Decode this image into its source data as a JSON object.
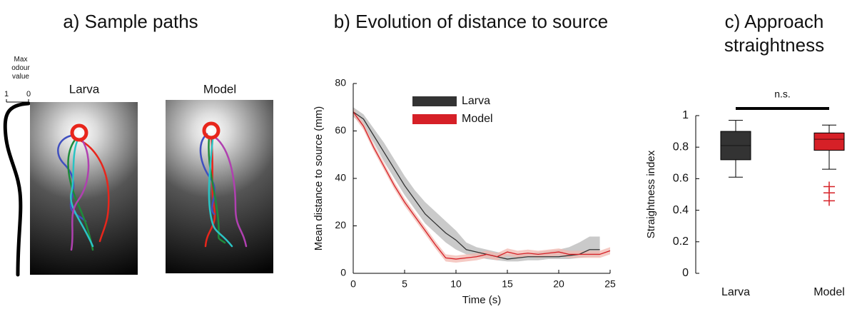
{
  "chart_data": [
    {
      "type": "paths",
      "title": "a) Sample paths",
      "profile_label": "Max odour value",
      "xlim": [
        1,
        0
      ],
      "xticks": [
        1,
        0
      ],
      "panels": [
        "Larva",
        "Model"
      ]
    },
    {
      "type": "line",
      "title": "b) Evolution of distance to source",
      "xlabel": "Time (s)",
      "ylabel": "Mean distance to source (mm)",
      "x": [
        0,
        1,
        2,
        3,
        4,
        5,
        6,
        7,
        8,
        9,
        10,
        11,
        12,
        13,
        14,
        15,
        16,
        17,
        18,
        19,
        20,
        21,
        22,
        23,
        24,
        25
      ],
      "xlim": [
        0,
        25
      ],
      "xticks": [
        0,
        5,
        10,
        15,
        20,
        25
      ],
      "ylim": [
        0,
        80
      ],
      "yticks": [
        0,
        20,
        40,
        60,
        80
      ],
      "series": [
        {
          "name": "Larva",
          "color": "#333333",
          "band_color": "#b8b8b8",
          "values": [
            68,
            65,
            58,
            51,
            44,
            37,
            31,
            25,
            21,
            17,
            14,
            10,
            9,
            8,
            7,
            6,
            6.5,
            7,
            7,
            7,
            7,
            7.5,
            8,
            10,
            10,
            null
          ],
          "upper": [
            70,
            67,
            61,
            55,
            48,
            41,
            35,
            30,
            26,
            22,
            18,
            13,
            11,
            10,
            9,
            8,
            8,
            8.5,
            9,
            9.5,
            10,
            11,
            13,
            15.5,
            15.5,
            null
          ],
          "lower": [
            66,
            62,
            55,
            47,
            40,
            33,
            27,
            21,
            17,
            13,
            10,
            8,
            7,
            6,
            5.5,
            5,
            5,
            5.5,
            5.5,
            6,
            6,
            6,
            6.5,
            7,
            7,
            null
          ]
        },
        {
          "name": "Model",
          "color": "#d62027",
          "band_color": "#f2b8b0",
          "values": [
            68,
            62,
            53,
            45,
            37,
            30,
            24,
            18,
            12,
            6.5,
            6,
            6.5,
            7,
            8,
            7,
            9,
            8,
            8.5,
            8,
            8.5,
            9,
            8,
            8,
            8,
            8,
            9.5
          ],
          "upper": [
            69.5,
            63.5,
            54.5,
            46.5,
            38.5,
            31.5,
            25.5,
            19.5,
            13.5,
            8,
            7.5,
            8,
            8.5,
            9.5,
            8.5,
            10.5,
            9.5,
            10,
            9.5,
            10,
            10.5,
            9.5,
            9.5,
            9.5,
            9.5,
            11
          ],
          "lower": [
            66.5,
            60.5,
            51.5,
            43.5,
            35.5,
            28.5,
            22.5,
            16.5,
            10.5,
            5,
            4.5,
            5,
            5.5,
            6.5,
            5.5,
            7.5,
            6.5,
            7,
            6.5,
            7,
            7.5,
            6.5,
            6.5,
            6.5,
            6.5,
            8
          ]
        }
      ]
    },
    {
      "type": "box",
      "title": "c) Approach straightness",
      "ylabel": "Straightness index",
      "annotation": "n.s.",
      "ylim": [
        0,
        1
      ],
      "yticks": [
        0,
        0.2,
        0.4,
        0.6,
        0.8,
        1
      ],
      "boxes": [
        {
          "name": "Larva",
          "color": "#333333",
          "low": 0.61,
          "q1": 0.72,
          "median": 0.81,
          "q3": 0.9,
          "high": 0.97
        },
        {
          "name": "Model",
          "color": "#d62027",
          "low": 0.66,
          "q1": 0.78,
          "median": 0.85,
          "q3": 0.89,
          "high": 0.94,
          "outliers": [
            0.55,
            0.51,
            0.46
          ]
        }
      ]
    }
  ]
}
